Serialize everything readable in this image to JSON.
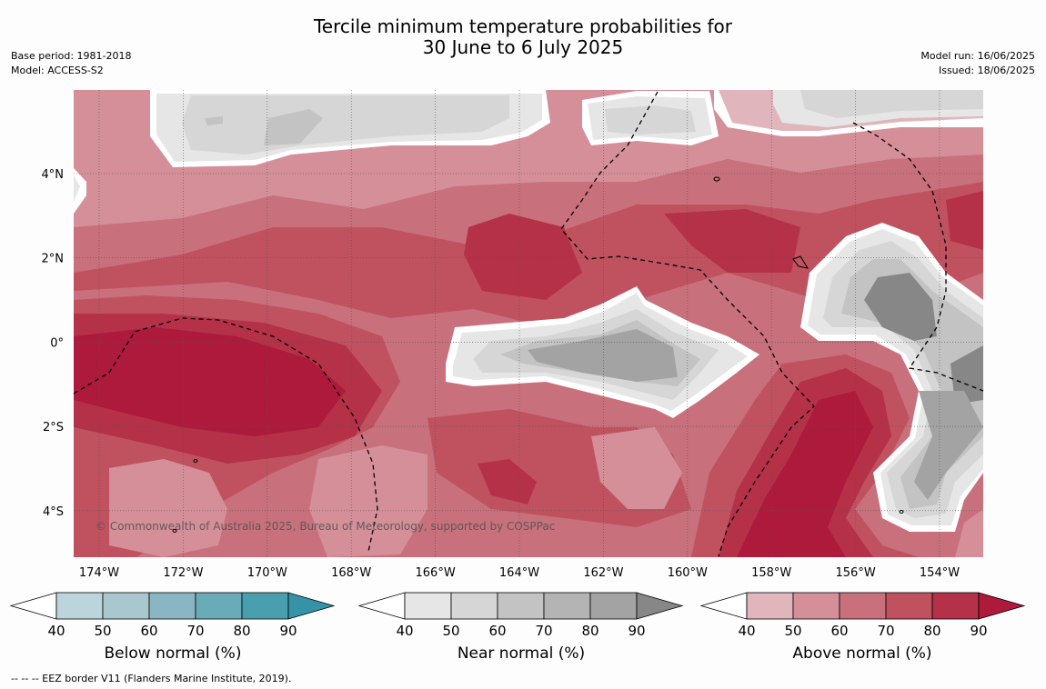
{
  "title": {
    "line1": "Tercile minimum temperature probabilities for",
    "line2": "30 June to 6 July 2025"
  },
  "meta": {
    "base_period": "Base period: 1981-2018",
    "model": "Model: ACCESS-S2",
    "model_run": "Model run: 16/06/2025",
    "issued": "Issued: 18/06/2025"
  },
  "map": {
    "lon_labels": [
      "174°W",
      "172°W",
      "170°W",
      "168°W",
      "166°W",
      "164°W",
      "162°W",
      "160°W",
      "158°W",
      "156°W",
      "154°W"
    ],
    "lat_labels": [
      "4°N",
      "2°N",
      "0°",
      "2°S",
      "4°S"
    ],
    "copyright": "© Commonwealth of Australia 2025, Bureau of Meteorology, supported by COSPPac"
  },
  "colorbars": [
    {
      "label": "Below normal (%)",
      "ticks": [
        "40",
        "50",
        "60",
        "70",
        "80",
        "90"
      ],
      "colors": [
        "#ffffff",
        "#bcd5dc",
        "#a8c8ce",
        "#89b6c2",
        "#6aabb8",
        "#4a9fae",
        "#3493a7"
      ]
    },
    {
      "label": "Near normal (%)",
      "ticks": [
        "40",
        "50",
        "60",
        "70",
        "80",
        "90"
      ],
      "colors": [
        "#ffffff",
        "#e6e6e6",
        "#d6d6d6",
        "#c3c3c3",
        "#b4b4b4",
        "#a3a3a3",
        "#878787"
      ]
    },
    {
      "label": "Above normal (%)",
      "ticks": [
        "40",
        "50",
        "60",
        "70",
        "80",
        "90"
      ],
      "colors": [
        "#ffffff",
        "#e0b6bc",
        "#d48f99",
        "#c8707b",
        "#c05260",
        "#b43148",
        "#ad1a3c"
      ]
    }
  ],
  "footnote": "--  --  -- EEZ border V11 (Flanders Marine Institute, 2019)."
}
